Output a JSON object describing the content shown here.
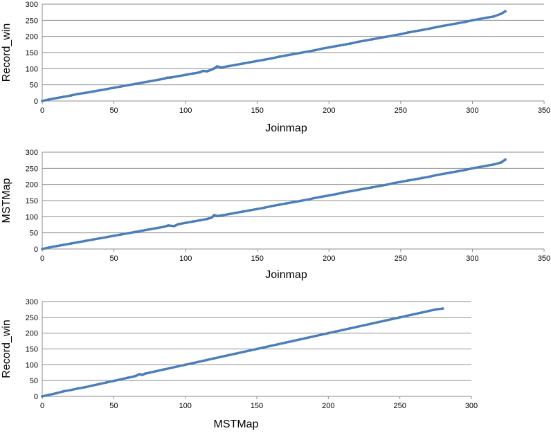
{
  "chart_data": [
    {
      "type": "scatter",
      "xlabel": "Joinmap",
      "ylabel": "Record_win",
      "xlim": [
        0,
        350
      ],
      "ylim": [
        0,
        300
      ],
      "x_ticks": [
        0,
        50,
        100,
        150,
        200,
        250,
        300,
        350
      ],
      "y_ticks": [
        0,
        50,
        100,
        150,
        200,
        250,
        300
      ],
      "grid": "horizontal",
      "marker_color": "#4a7ebb",
      "series": [
        {
          "x": [
            0,
            5,
            10,
            15,
            20,
            25,
            30,
            35,
            40,
            45,
            50,
            55,
            60,
            65,
            70,
            75,
            80,
            85,
            87,
            90,
            95,
            100,
            105,
            110,
            112,
            115,
            118,
            120,
            122,
            125,
            130,
            135,
            140,
            145,
            150,
            155,
            160,
            165,
            170,
            175,
            180,
            185,
            190,
            195,
            200,
            205,
            210,
            215,
            220,
            225,
            230,
            235,
            240,
            245,
            250,
            255,
            260,
            265,
            270,
            275,
            280,
            285,
            290,
            295,
            300,
            305,
            310,
            315,
            320,
            323
          ],
          "y": [
            0,
            5,
            9,
            13,
            17,
            22,
            25,
            29,
            33,
            37,
            41,
            45,
            49,
            53,
            57,
            61,
            65,
            69,
            72,
            73,
            77,
            81,
            85,
            89,
            93,
            92,
            97,
            101,
            107,
            104,
            108,
            112,
            116,
            120,
            124,
            128,
            132,
            137,
            141,
            145,
            149,
            153,
            157,
            162,
            166,
            170,
            174,
            178,
            183,
            187,
            191,
            195,
            199,
            203,
            207,
            212,
            216,
            220,
            224,
            229,
            233,
            237,
            241,
            245,
            250,
            254,
            258,
            262,
            270,
            278
          ]
        }
      ]
    },
    {
      "type": "scatter",
      "xlabel": "Joinmap",
      "ylabel": "MSTMap",
      "xlim": [
        0,
        350
      ],
      "ylim": [
        0,
        300
      ],
      "x_ticks": [
        0,
        50,
        100,
        150,
        200,
        250,
        300,
        350
      ],
      "y_ticks": [
        0,
        50,
        100,
        150,
        200,
        250,
        300
      ],
      "grid": "horizontal",
      "marker_color": "#4a7ebb",
      "series": [
        {
          "x": [
            0,
            5,
            10,
            15,
            20,
            25,
            30,
            35,
            40,
            45,
            50,
            55,
            60,
            65,
            70,
            75,
            80,
            85,
            88,
            92,
            95,
            100,
            105,
            110,
            115,
            118,
            120,
            122,
            125,
            130,
            135,
            140,
            145,
            150,
            155,
            160,
            165,
            170,
            175,
            180,
            185,
            190,
            195,
            200,
            205,
            210,
            215,
            220,
            225,
            230,
            235,
            240,
            245,
            250,
            255,
            260,
            265,
            270,
            275,
            280,
            285,
            290,
            295,
            300,
            305,
            310,
            315,
            320,
            323
          ],
          "y": [
            0,
            5,
            9,
            13,
            17,
            21,
            25,
            29,
            33,
            37,
            41,
            45,
            49,
            53,
            57,
            61,
            65,
            69,
            73,
            71,
            77,
            81,
            85,
            89,
            93,
            97,
            105,
            102,
            104,
            108,
            112,
            116,
            120,
            124,
            128,
            133,
            137,
            141,
            145,
            149,
            153,
            158,
            162,
            166,
            170,
            175,
            179,
            183,
            187,
            191,
            195,
            199,
            204,
            208,
            212,
            216,
            220,
            224,
            229,
            233,
            237,
            241,
            245,
            250,
            254,
            258,
            262,
            268,
            277
          ]
        }
      ]
    },
    {
      "type": "scatter",
      "xlabel": "MSTMap",
      "ylabel": "Record_win",
      "xlim": [
        0,
        300
      ],
      "ylim": [
        0,
        300
      ],
      "x_ticks": [
        0,
        50,
        100,
        150,
        200,
        250,
        300
      ],
      "y_ticks": [
        0,
        50,
        100,
        150,
        200,
        250,
        300
      ],
      "grid": "horizontal",
      "marker_color": "#4a7ebb",
      "series": [
        {
          "x": [
            0,
            5,
            10,
            15,
            20,
            25,
            30,
            35,
            40,
            45,
            50,
            55,
            60,
            65,
            68,
            70,
            72,
            75,
            80,
            85,
            90,
            95,
            100,
            105,
            110,
            115,
            120,
            125,
            130,
            135,
            140,
            145,
            150,
            155,
            160,
            165,
            170,
            175,
            180,
            185,
            190,
            195,
            200,
            205,
            210,
            215,
            220,
            225,
            230,
            235,
            240,
            245,
            250,
            255,
            260,
            265,
            270,
            275,
            280
          ],
          "y": [
            0,
            5,
            10,
            16,
            20,
            25,
            29,
            34,
            39,
            44,
            49,
            54,
            59,
            64,
            70,
            68,
            72,
            75,
            80,
            85,
            90,
            95,
            100,
            105,
            110,
            115,
            120,
            125,
            130,
            135,
            140,
            145,
            150,
            155,
            160,
            165,
            170,
            175,
            180,
            185,
            190,
            195,
            200,
            205,
            210,
            215,
            220,
            225,
            230,
            235,
            240,
            245,
            250,
            255,
            260,
            265,
            270,
            275,
            278
          ]
        }
      ]
    }
  ]
}
